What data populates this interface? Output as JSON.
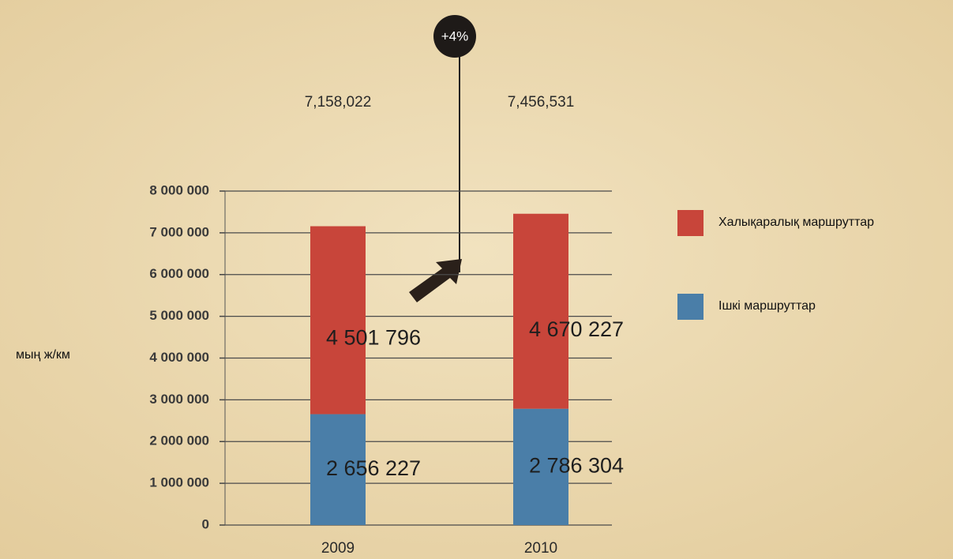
{
  "chart_data": {
    "type": "stacked_bar",
    "y_label": "мың ж/км",
    "annotation": "+4%",
    "categories": [
      "2009",
      "2010"
    ],
    "series": [
      {
        "name": "Ішкі маршруттар",
        "color": "#4a7ea8",
        "values": [
          2656227,
          2786304
        ],
        "value_labels": [
          "2 656 227",
          "2 786 304"
        ]
      },
      {
        "name": "Халықаралық маршруттар",
        "color": "#c8453a",
        "values": [
          4501796,
          4670227
        ],
        "value_labels": [
          "4 501 796",
          "4 670 227"
        ]
      }
    ],
    "totals": {
      "values": [
        7158022,
        7456531
      ],
      "value_labels": [
        "7,158,022",
        "7,456,531"
      ]
    },
    "ylim": [
      0,
      8000000
    ],
    "yticks": [
      {
        "value": 0,
        "label": "0"
      },
      {
        "value": 1000000,
        "label": "1 000 000"
      },
      {
        "value": 2000000,
        "label": "2 000 000"
      },
      {
        "value": 3000000,
        "label": "3 000 000"
      },
      {
        "value": 4000000,
        "label": "4 000 000"
      },
      {
        "value": 5000000,
        "label": "5 000 000"
      },
      {
        "value": 6000000,
        "label": "6 000 000"
      },
      {
        "value": 7000000,
        "label": "7 000 000"
      },
      {
        "value": 8000000,
        "label": "8 000 000"
      }
    ],
    "grid": true
  }
}
